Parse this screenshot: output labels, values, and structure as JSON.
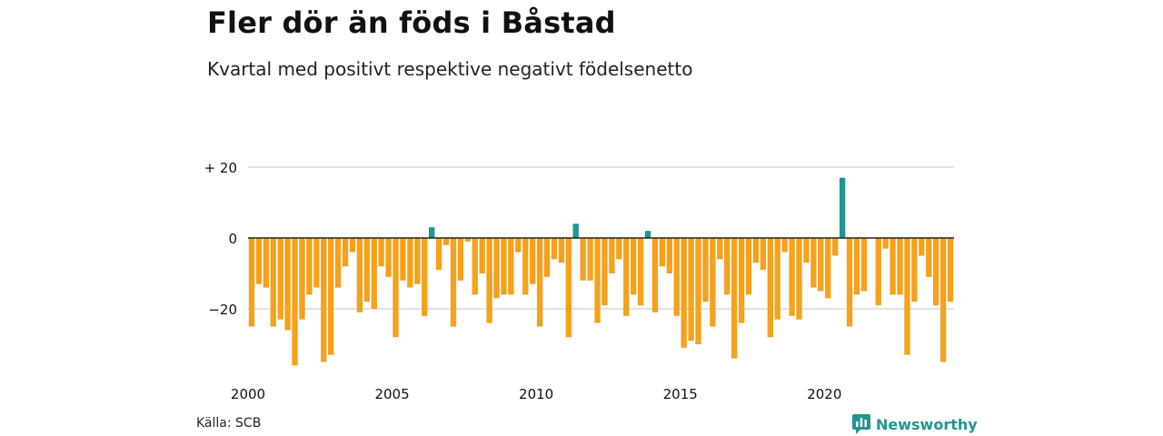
{
  "title": "Fler dör än föds i Båstad",
  "subtitle": "Kvartal med positivt respektive negativt födelsenetto",
  "source": "Källa: SCB",
  "brand": "Newsworthy",
  "colors": {
    "negative": "#f5a11c",
    "positive": "#21968f",
    "grid": "#d9d9d9",
    "zero_line": "#222222",
    "text": "#111111"
  },
  "chart_data": {
    "type": "bar",
    "x_unit": "quarter",
    "x_start": "2000 Q1",
    "values": [
      -25,
      -13,
      -14,
      -25,
      -23,
      -26,
      -36,
      -23,
      -16,
      -14,
      -35,
      -33,
      -14,
      -8,
      -4,
      -21,
      -18,
      -20,
      -8,
      -11,
      -28,
      -12,
      -14,
      -13,
      -22,
      3,
      -9,
      -2,
      -25,
      -12,
      -1,
      -16,
      -10,
      -24,
      -17,
      -16,
      -16,
      -4,
      -16,
      -13,
      -25,
      -11,
      -6,
      -7,
      -28,
      4,
      -12,
      -12,
      -24,
      -19,
      -10,
      -6,
      -22,
      -16,
      -19,
      2,
      -21,
      -8,
      -10,
      -22,
      -31,
      -29,
      -30,
      -18,
      -25,
      -6,
      -16,
      -34,
      -24,
      -16,
      -7,
      -9,
      -28,
      -23,
      -4,
      -22,
      -23,
      -7,
      -14,
      -15,
      -17,
      -5,
      17,
      -25,
      -16,
      -15,
      0,
      -19,
      -3,
      -16,
      -16,
      -33,
      -18,
      -5,
      -11,
      -19,
      -35,
      -18
    ],
    "ylim": [
      -36,
      20
    ],
    "y_ticks": [
      {
        "value": 20,
        "label": "+ 20"
      },
      {
        "value": 0,
        "label": "0"
      },
      {
        "value": -20,
        "label": "−20"
      }
    ],
    "x_ticks": [
      "2000",
      "2005",
      "2010",
      "2015",
      "2020"
    ],
    "x_tick_years": [
      2000,
      2005,
      2010,
      2015,
      2020
    ],
    "grid": true,
    "legend": "none"
  }
}
